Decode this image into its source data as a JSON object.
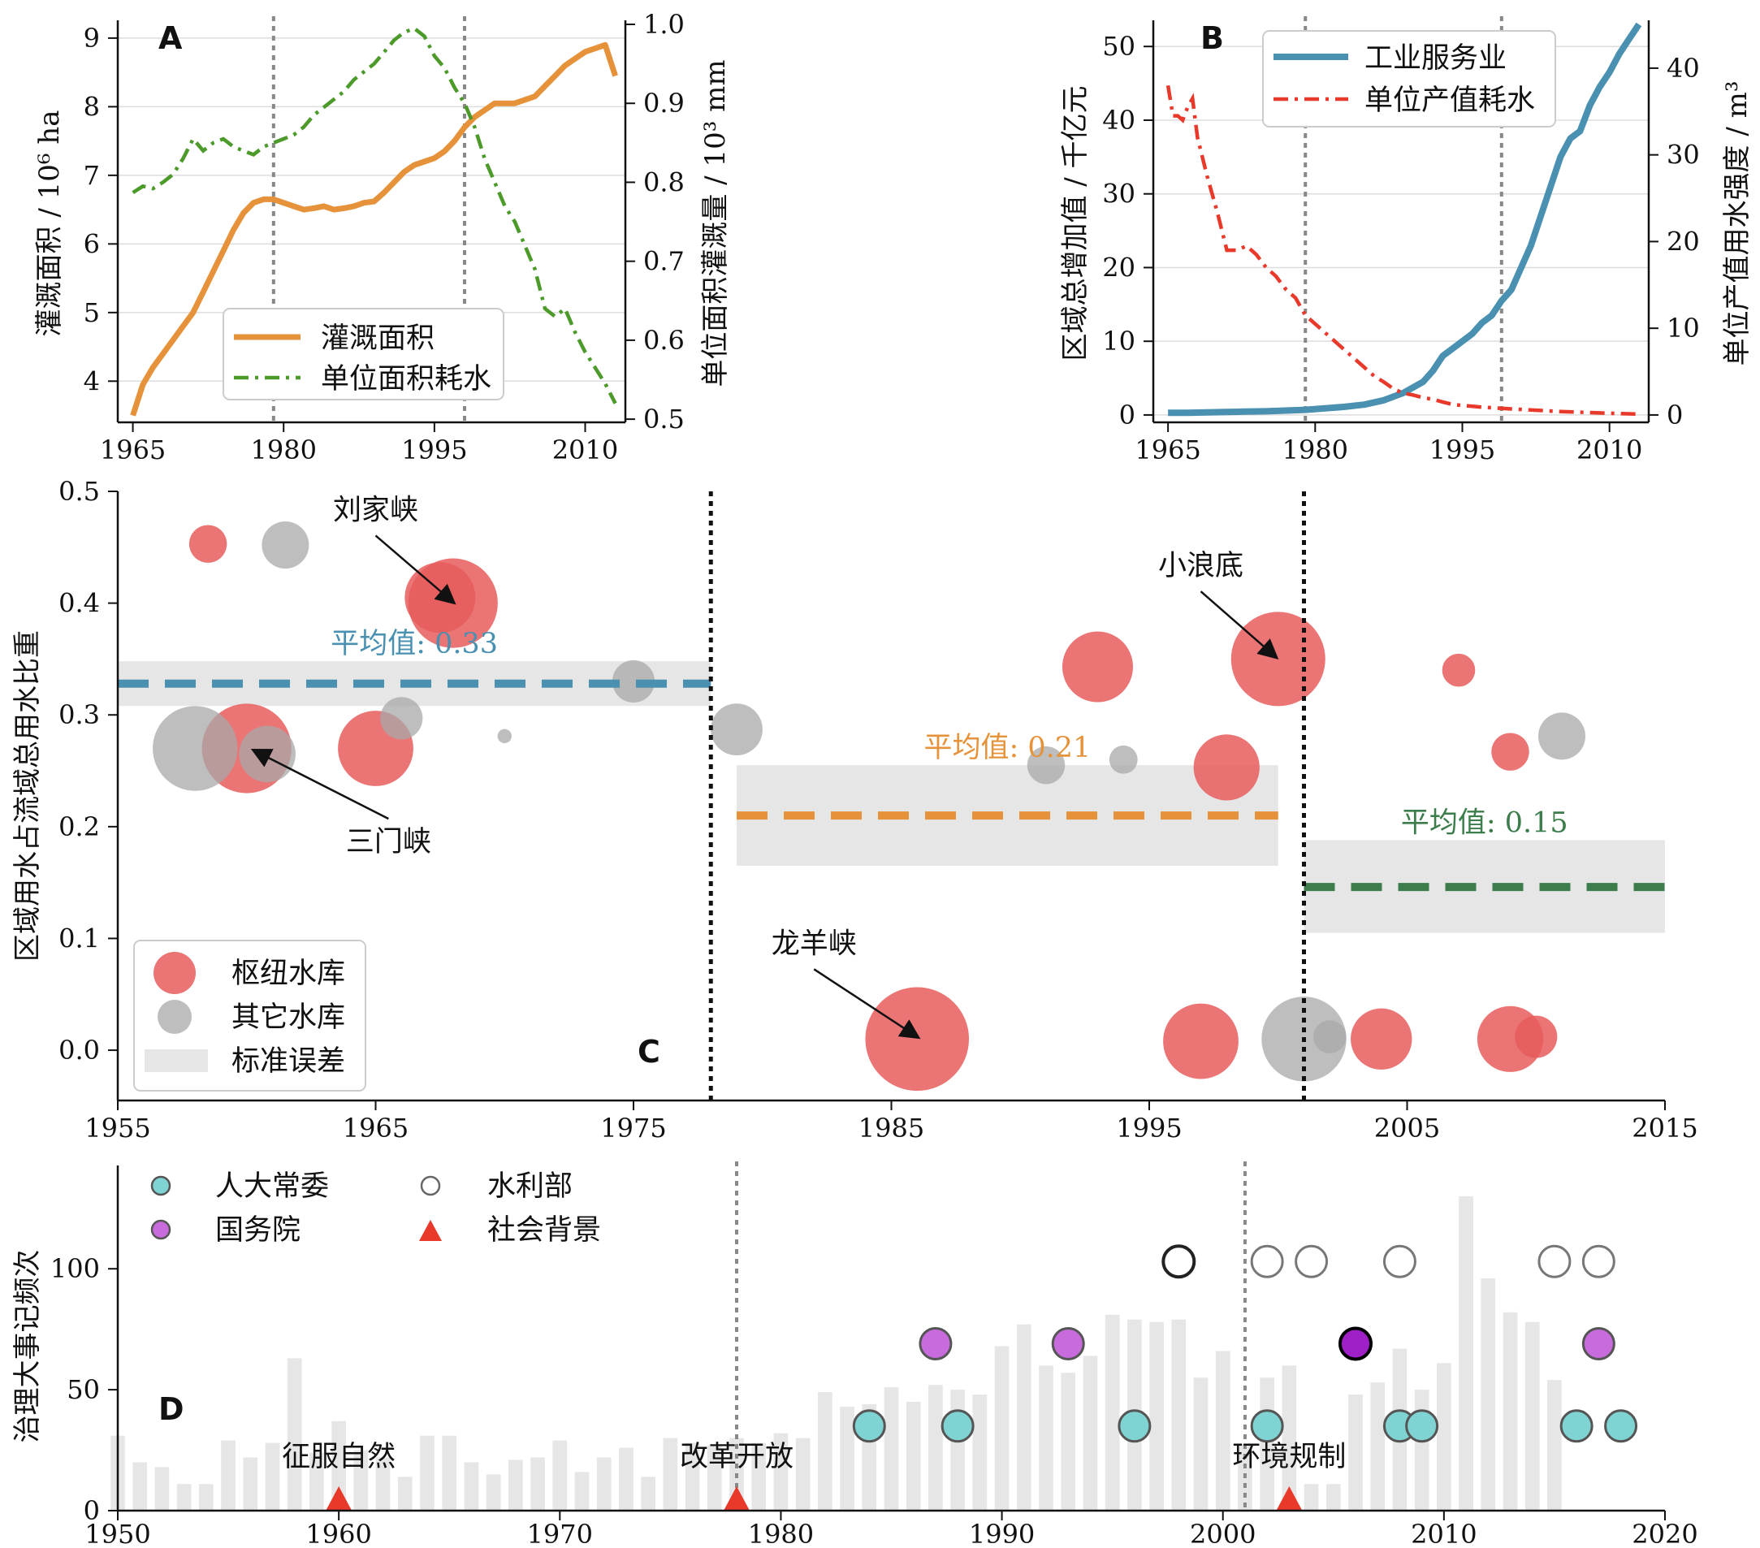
{
  "colors": {
    "orange": "#e6923a",
    "green": "#4c9a2a",
    "blue": "#4a90b0",
    "red": "#e8392a",
    "pink": "#e85c5c",
    "gray": "#a8a8a8",
    "teal": "#7fd3d2",
    "purple": "#c86bdc",
    "darkgreen": "#3c7d4b",
    "meanblue": "#4a90b0",
    "meanorange": "#e6923a",
    "band": "#e6e6e6",
    "bar": "#e6e6e6"
  },
  "panels": {
    "A": {
      "letter": "A"
    },
    "B": {
      "letter": "B"
    },
    "C": {
      "letter": "C"
    },
    "D": {
      "letter": "D"
    }
  },
  "chart_data": [
    {
      "panel": "A",
      "type": "line",
      "title": "",
      "xlabel": "",
      "ylabel": "灌溉面积 / 10⁶ ha",
      "y2label": "单位面积灌溉量 / 10³ mm",
      "xlim": [
        1963.5,
        2014
      ],
      "ylim": [
        3.4,
        9.2
      ],
      "y2lim": [
        0.496,
        1.0
      ],
      "xticks": [
        1965,
        1980,
        1995,
        2010
      ],
      "yticks": [
        4,
        5,
        6,
        7,
        8,
        9
      ],
      "y2ticks": [
        0.5,
        0.6,
        0.7,
        0.8,
        0.9,
        1.0
      ],
      "y2tick_labels": [
        "0.5",
        "0.6",
        "0.7",
        "0.8",
        "0.9",
        "1.0"
      ],
      "vlines": [
        1979,
        1998
      ],
      "legend": {
        "placement": "lower-center",
        "entries": [
          "灌溉面积",
          "单位面积耗水"
        ]
      },
      "series": [
        {
          "name": "灌溉面积",
          "axis": "left",
          "style": "solid",
          "color": "orange",
          "x": [
            1965,
            1966,
            1967,
            1968,
            1969,
            1970,
            1971,
            1972,
            1973,
            1974,
            1975,
            1976,
            1977,
            1978,
            1979,
            1980,
            1981,
            1982,
            1983,
            1984,
            1985,
            1986,
            1987,
            1988,
            1989,
            1990,
            1991,
            1992,
            1993,
            1994,
            1995,
            1996,
            1997,
            1998,
            1999,
            2000,
            2001,
            2002,
            2003,
            2004,
            2005,
            2006,
            2007,
            2008,
            2009,
            2010,
            2011,
            2012,
            2013
          ],
          "y": [
            3.5,
            3.95,
            4.2,
            4.4,
            4.6,
            4.8,
            5.0,
            5.3,
            5.6,
            5.9,
            6.2,
            6.45,
            6.6,
            6.65,
            6.65,
            6.6,
            6.55,
            6.5,
            6.52,
            6.55,
            6.5,
            6.52,
            6.55,
            6.6,
            6.62,
            6.75,
            6.9,
            7.05,
            7.15,
            7.2,
            7.25,
            7.35,
            7.5,
            7.7,
            7.85,
            7.95,
            8.05,
            8.05,
            8.05,
            8.1,
            8.15,
            8.3,
            8.45,
            8.6,
            8.7,
            8.8,
            8.85,
            8.9,
            8.45
          ]
        },
        {
          "name": "单位面积耗水",
          "axis": "right",
          "style": "dashdot",
          "color": "green",
          "x": [
            1965,
            1966,
            1967,
            1968,
            1969,
            1970,
            1971,
            1972,
            1973,
            1974,
            1975,
            1976,
            1977,
            1978,
            1979,
            1980,
            1981,
            1982,
            1983,
            1984,
            1985,
            1986,
            1987,
            1988,
            1989,
            1990,
            1991,
            1992,
            1993,
            1994,
            1995,
            1996,
            1997,
            1998,
            1999,
            2000,
            2001,
            2002,
            2003,
            2004,
            2005,
            2006,
            2007,
            2008,
            2009,
            2010,
            2011,
            2012,
            2013
          ],
          "y": [
            0.787,
            0.795,
            0.792,
            0.8,
            0.81,
            0.83,
            0.855,
            0.84,
            0.85,
            0.855,
            0.845,
            0.84,
            0.835,
            0.845,
            0.85,
            0.855,
            0.86,
            0.87,
            0.885,
            0.895,
            0.905,
            0.915,
            0.93,
            0.94,
            0.95,
            0.965,
            0.98,
            0.99,
            0.995,
            0.985,
            0.96,
            0.945,
            0.92,
            0.9,
            0.87,
            0.83,
            0.8,
            0.77,
            0.75,
            0.72,
            0.69,
            0.64,
            0.63,
            0.64,
            0.61,
            0.585,
            0.565,
            0.545,
            0.52
          ]
        }
      ]
    },
    {
      "panel": "B",
      "type": "line",
      "title": "",
      "xlabel": "",
      "ylabel": "区域总增加值 / 千亿元",
      "y2label": "单位产值用水强度 / m³",
      "xlim": [
        1963.5,
        2014
      ],
      "ylim": [
        -1,
        53
      ],
      "y2lim": [
        -0.85,
        45.05
      ],
      "xticks": [
        1965,
        1980,
        1995,
        2010
      ],
      "yticks": [
        0,
        10,
        20,
        30,
        40,
        50
      ],
      "y2ticks": [
        0,
        10,
        20,
        30,
        40
      ],
      "vlines": [
        1979,
        1999
      ],
      "legend": {
        "placement": "top-right",
        "entries": [
          "工业服务业",
          "单位产值耗水"
        ]
      },
      "series": [
        {
          "name": "工业服务业",
          "axis": "left",
          "style": "solid",
          "color": "blue",
          "x": [
            1965,
            1967,
            1969,
            1971,
            1973,
            1975,
            1977,
            1979,
            1981,
            1983,
            1985,
            1987,
            1989,
            1991,
            1992,
            1993,
            1994,
            1995,
            1996,
            1997,
            1998,
            1999,
            2000,
            2001,
            2002,
            2003,
            2004,
            2005,
            2006,
            2007,
            2008,
            2009,
            2010,
            2011,
            2012,
            2013
          ],
          "y": [
            0.3,
            0.3,
            0.35,
            0.4,
            0.45,
            0.5,
            0.6,
            0.7,
            0.9,
            1.1,
            1.4,
            2.0,
            3.0,
            4.5,
            6.0,
            8.0,
            9.0,
            10.0,
            11.0,
            12.5,
            13.5,
            15.5,
            17.0,
            20.0,
            23.0,
            27.0,
            31.0,
            35.0,
            37.5,
            38.5,
            42.0,
            44.5,
            46.5,
            49.0,
            51.0,
            53.0
          ]
        },
        {
          "name": "单位产值耗水",
          "axis": "right",
          "style": "dashdot",
          "color": "red",
          "x": [
            1965,
            1965.5,
            1966,
            1966.5,
            1967,
            1967.5,
            1968,
            1969,
            1970,
            1971,
            1972,
            1973,
            1974,
            1975,
            1976,
            1977,
            1978,
            1979,
            1980,
            1981,
            1982,
            1983,
            1984,
            1985,
            1986,
            1987,
            1988,
            1989,
            1990,
            1991,
            1992,
            1993,
            1994,
            1995,
            1997,
            2000,
            2005,
            2010,
            2013
          ],
          "y": [
            38.0,
            34.5,
            34.5,
            34.0,
            35.5,
            36.5,
            32.0,
            27.5,
            23.5,
            19.0,
            19.0,
            19.5,
            18.5,
            17.0,
            16.0,
            14.5,
            13.5,
            11.5,
            10.5,
            9.5,
            8.5,
            7.5,
            6.5,
            5.5,
            4.5,
            3.8,
            3.0,
            2.5,
            2.3,
            2.0,
            1.8,
            1.5,
            1.2,
            1.1,
            0.9,
            0.7,
            0.4,
            0.2,
            0.1
          ]
        }
      ]
    },
    {
      "panel": "C",
      "type": "scatter",
      "title": "",
      "xlabel": "",
      "ylabel": "区域用水占流域总用水比重",
      "xlim": [
        1955,
        2015
      ],
      "ylim": [
        -0.045,
        0.5
      ],
      "xticks": [
        1955,
        1965,
        1975,
        1985,
        1995,
        2005,
        2015
      ],
      "yticks": [
        0.0,
        0.1,
        0.2,
        0.3,
        0.4,
        0.5
      ],
      "ytick_labels": [
        "0.0",
        "0.1",
        "0.2",
        "0.3",
        "0.4",
        "0.5"
      ],
      "vlines": [
        1978,
        2001
      ],
      "legend": {
        "placement": "lower-left",
        "entries": [
          "枢纽水库",
          "其它水库",
          "标准误差"
        ]
      },
      "means": [
        {
          "label": "平均值: 0.33",
          "value": 0.328,
          "x0": 1955,
          "x1": 1978,
          "band": [
            0.308,
            0.348
          ],
          "color": "meanblue"
        },
        {
          "label": "平均值: 0.21",
          "value": 0.21,
          "x0": 1979,
          "x1": 2000,
          "band": [
            0.165,
            0.255
          ],
          "color": "meanorange"
        },
        {
          "label": "平均值: 0.15",
          "value": 0.146,
          "x0": 2001,
          "x1": 2015,
          "band": [
            0.105,
            0.188
          ],
          "color": "darkgreen"
        }
      ],
      "series": [
        {
          "name": "枢纽水库",
          "color": "pink",
          "points": [
            {
              "x": 1958.5,
              "y": 0.453,
              "s": 0.4
            },
            {
              "x": 1967.5,
              "y": 0.405,
              "s": 0.75
            },
            {
              "x": 1968.0,
              "y": 0.4,
              "s": 0.95
            },
            {
              "x": 1960.0,
              "y": 0.27,
              "s": 0.95
            },
            {
              "x": 1965.0,
              "y": 0.27,
              "s": 0.8
            },
            {
              "x": 1993.0,
              "y": 0.343,
              "s": 0.75
            },
            {
              "x": 2000.0,
              "y": 0.35,
              "s": 1.0
            },
            {
              "x": 1998.0,
              "y": 0.253,
              "s": 0.7
            },
            {
              "x": 2007.0,
              "y": 0.34,
              "s": 0.35
            },
            {
              "x": 2009.0,
              "y": 0.267,
              "s": 0.4
            },
            {
              "x": 1986.0,
              "y": 0.01,
              "s": 1.1
            },
            {
              "x": 1997.0,
              "y": 0.008,
              "s": 0.8
            },
            {
              "x": 2004.0,
              "y": 0.01,
              "s": 0.65
            },
            {
              "x": 2009.0,
              "y": 0.01,
              "s": 0.7
            },
            {
              "x": 2010.0,
              "y": 0.012,
              "s": 0.45
            }
          ]
        },
        {
          "name": "其它水库",
          "color": "gray",
          "points": [
            {
              "x": 1961.5,
              "y": 0.452,
              "s": 0.5
            },
            {
              "x": 1958.0,
              "y": 0.27,
              "s": 0.9
            },
            {
              "x": 1960.8,
              "y": 0.265,
              "s": 0.6
            },
            {
              "x": 1966.0,
              "y": 0.297,
              "s": 0.45
            },
            {
              "x": 1970.0,
              "y": 0.281,
              "s": 0.15
            },
            {
              "x": 1975.0,
              "y": 0.33,
              "s": 0.45
            },
            {
              "x": 1979.0,
              "y": 0.287,
              "s": 0.55
            },
            {
              "x": 1991.0,
              "y": 0.255,
              "s": 0.4
            },
            {
              "x": 1994.0,
              "y": 0.26,
              "s": 0.3
            },
            {
              "x": 2001.0,
              "y": 0.01,
              "s": 0.9
            },
            {
              "x": 2002.0,
              "y": 0.012,
              "s": 0.35
            },
            {
              "x": 2011.0,
              "y": 0.281,
              "s": 0.5
            }
          ]
        }
      ],
      "annotations": [
        {
          "text": "刘家峡",
          "tx": 1965.0,
          "ty": 0.475,
          "ax": 1968.0,
          "ay": 0.401
        },
        {
          "text": "三门峡",
          "tx": 1965.5,
          "ty": 0.178,
          "ax": 1960.3,
          "ay": 0.268
        },
        {
          "text": "小浪底",
          "tx": 1997.0,
          "ty": 0.425,
          "ax": 1999.9,
          "ay": 0.352
        },
        {
          "text": "龙羊峡",
          "tx": 1982.0,
          "ty": 0.087,
          "ax": 1986.0,
          "ay": 0.012
        }
      ]
    },
    {
      "panel": "D",
      "type": "bar",
      "title": "",
      "xlabel": "",
      "ylabel": "治理大事记频次",
      "xlim": [
        1950,
        2020
      ],
      "ylim": [
        0,
        136
      ],
      "xticks": [
        1950,
        1960,
        1970,
        1980,
        1990,
        2000,
        2010,
        2020
      ],
      "yticks": [
        0,
        50,
        100
      ],
      "vlines": [
        1978,
        2001
      ],
      "legend": {
        "placement": "top-left",
        "entries": [
          "人大常委",
          "水利部",
          "国务院",
          "社会背景"
        ]
      },
      "bars": {
        "x": [
          1950,
          1951,
          1952,
          1953,
          1954,
          1955,
          1956,
          1957,
          1958,
          1959,
          1960,
          1961,
          1962,
          1963,
          1964,
          1965,
          1966,
          1967,
          1968,
          1969,
          1970,
          1971,
          1972,
          1973,
          1974,
          1975,
          1976,
          1977,
          1978,
          1979,
          1980,
          1981,
          1982,
          1983,
          1984,
          1985,
          1986,
          1987,
          1988,
          1989,
          1990,
          1991,
          1992,
          1993,
          1994,
          1995,
          1996,
          1997,
          1998,
          1999,
          2000,
          2001,
          2002,
          2003,
          2004,
          2005,
          2006,
          2007,
          2008,
          2009,
          2010,
          2011,
          2012,
          2013,
          2014,
          2015
        ],
        "values": [
          31,
          20,
          18,
          11,
          11,
          29,
          22,
          28,
          63,
          24,
          37,
          25,
          22,
          14,
          31,
          31,
          20,
          15,
          21,
          22,
          29,
          16,
          22,
          26,
          14,
          30,
          28,
          27,
          30,
          28,
          32,
          30,
          49,
          43,
          44,
          51,
          45,
          52,
          50,
          48,
          68,
          77,
          60,
          57,
          64,
          81,
          79,
          78,
          79,
          55,
          66,
          27,
          55,
          60,
          11,
          11,
          48,
          53,
          67,
          50,
          61,
          130,
          96,
          82,
          78,
          54
        ]
      },
      "events": {
        "人大常委": [
          1984,
          1988,
          1996,
          2002,
          2008,
          2009,
          2016,
          2018
        ],
        "国务院": [
          1987,
          1993,
          2006,
          2017
        ],
        "水利部": [
          1998,
          2002,
          2004,
          2008,
          2015,
          2017
        ],
        "社会背景": [
          {
            "x": 1960,
            "label": "征服自然"
          },
          {
            "x": 1978,
            "label": "改革开放"
          },
          {
            "x": 2003,
            "label": "环境规制"
          }
        ]
      },
      "event_levels": {
        "人大常委": 35,
        "国务院": 69,
        "水利部": 103
      },
      "highlight": {
        "国务院": 2006,
        "水利部": 1998
      }
    }
  ]
}
